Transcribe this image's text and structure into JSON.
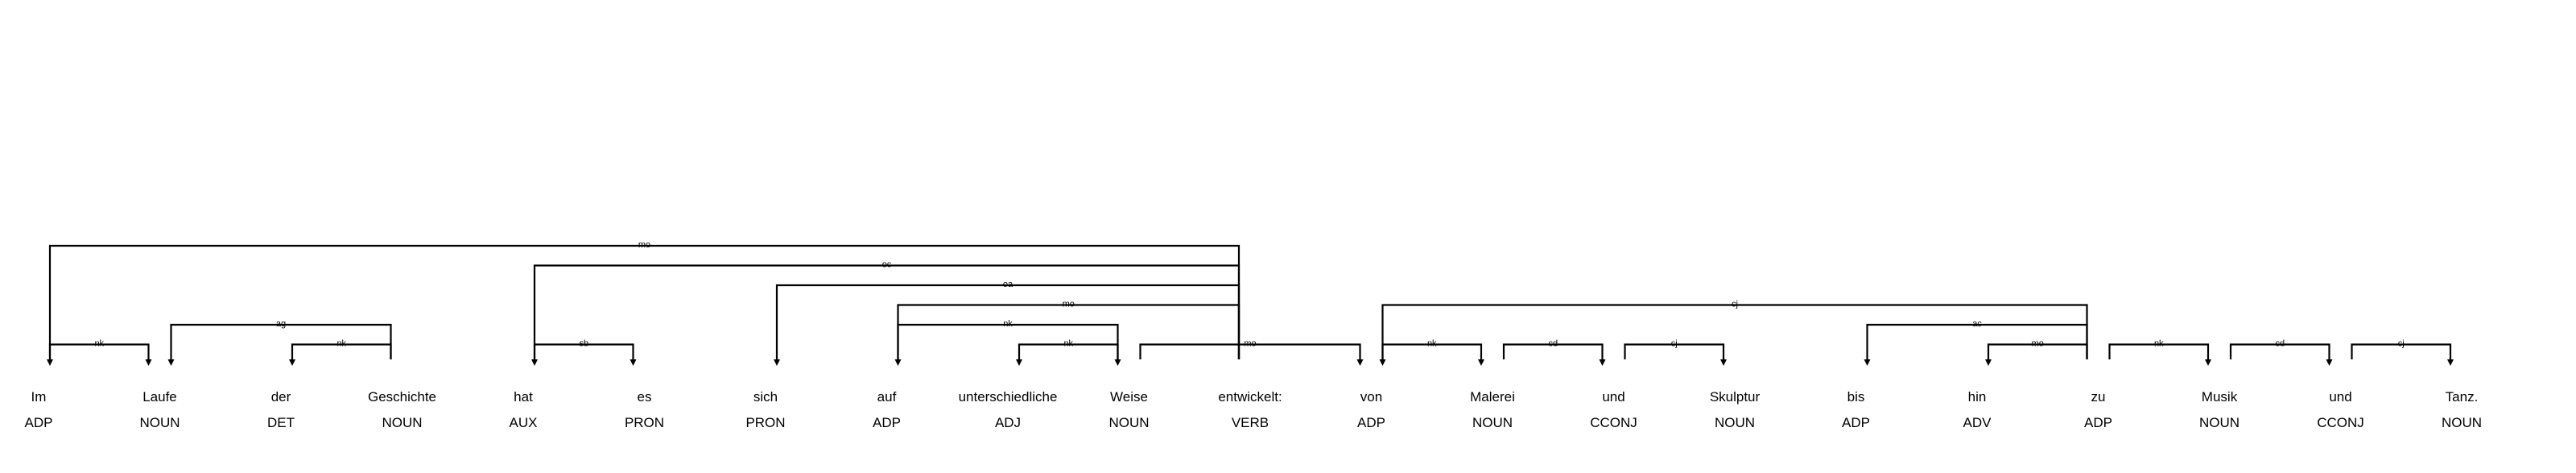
{
  "sentence": {
    "tokens": [
      {
        "text": "Im",
        "pos": "ADP"
      },
      {
        "text": "Laufe",
        "pos": "NOUN"
      },
      {
        "text": "der",
        "pos": "DET"
      },
      {
        "text": "Geschichte",
        "pos": "NOUN"
      },
      {
        "text": "hat",
        "pos": "AUX"
      },
      {
        "text": "es",
        "pos": "PRON"
      },
      {
        "text": "sich",
        "pos": "PRON"
      },
      {
        "text": "auf",
        "pos": "ADP"
      },
      {
        "text": "unterschiedliche",
        "pos": "ADJ"
      },
      {
        "text": "Weise",
        "pos": "NOUN"
      },
      {
        "text": "entwickelt:",
        "pos": "VERB"
      },
      {
        "text": "von",
        "pos": "ADP"
      },
      {
        "text": "Malerei",
        "pos": "NOUN"
      },
      {
        "text": "und",
        "pos": "CCONJ"
      },
      {
        "text": "Skulptur",
        "pos": "NOUN"
      },
      {
        "text": "bis",
        "pos": "ADP"
      },
      {
        "text": "hin",
        "pos": "ADV"
      },
      {
        "text": "zu",
        "pos": "ADP"
      },
      {
        "text": "Musik",
        "pos": "NOUN"
      },
      {
        "text": "und",
        "pos": "CCONJ"
      },
      {
        "text": "Tanz.",
        "pos": "NOUN"
      }
    ],
    "arcs": [
      {
        "from": 10,
        "to": 0,
        "label": "mo",
        "level": 6
      },
      {
        "from": 0,
        "to": 1,
        "label": "nk",
        "level": 1
      },
      {
        "from": 3,
        "to": 1,
        "label": "ag",
        "level": 2
      },
      {
        "from": 3,
        "to": 2,
        "label": "nk",
        "level": 1
      },
      {
        "from": 10,
        "to": 4,
        "label": "oc",
        "level": 5
      },
      {
        "from": 4,
        "to": 5,
        "label": "sb",
        "level": 1
      },
      {
        "from": 10,
        "to": 6,
        "label": "oa",
        "level": 4
      },
      {
        "from": 10,
        "to": 7,
        "label": "mo",
        "level": 3
      },
      {
        "from": 7,
        "to": 9,
        "label": "nk",
        "level": 2
      },
      {
        "from": 9,
        "to": 8,
        "label": "nk",
        "level": 1
      },
      {
        "from": 9,
        "to": 11,
        "label": "mo",
        "level": 1
      },
      {
        "from": 17,
        "to": 11,
        "label": "cj",
        "level": 3
      },
      {
        "from": 11,
        "to": 12,
        "label": "nk",
        "level": 1
      },
      {
        "from": 12,
        "to": 13,
        "label": "cd",
        "level": 1
      },
      {
        "from": 13,
        "to": 14,
        "label": "cj",
        "level": 1
      },
      {
        "from": 17,
        "to": 15,
        "label": "ac",
        "level": 2
      },
      {
        "from": 17,
        "to": 16,
        "label": "mo",
        "level": 1
      },
      {
        "from": 17,
        "to": 18,
        "label": "nk",
        "level": 1
      },
      {
        "from": 18,
        "to": 19,
        "label": "cd",
        "level": 1
      },
      {
        "from": 19,
        "to": 20,
        "label": "cj",
        "level": 1
      }
    ]
  }
}
